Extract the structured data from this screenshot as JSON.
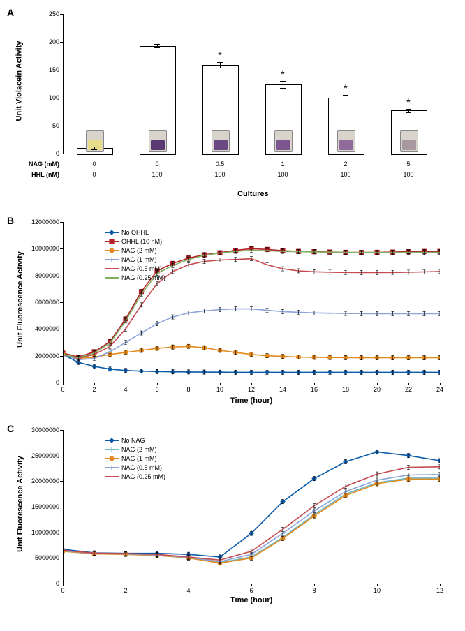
{
  "panelA": {
    "label": "A",
    "type": "bar",
    "ylabel": "Unit Violacein Activity",
    "xlabel": "Cultures",
    "ylim": [
      0,
      250
    ],
    "ytick_step": 50,
    "row1_label": "NAG (mM)",
    "row2_label": "HHL (nM)",
    "bars": [
      {
        "nag": "0",
        "hhl": "0",
        "value": 10,
        "err": 2,
        "star": false,
        "vial_color": "#e6dc8a"
      },
      {
        "nag": "0",
        "hhl": "100",
        "value": 193,
        "err": 3,
        "star": false,
        "vial_color": "#5a3a72"
      },
      {
        "nag": "0.5",
        "hhl": "100",
        "value": 159,
        "err": 5,
        "star": true,
        "vial_color": "#6a4882"
      },
      {
        "nag": "1",
        "hhl": "100",
        "value": 124,
        "err": 6,
        "star": true,
        "vial_color": "#7b568f"
      },
      {
        "nag": "2",
        "hhl": "100",
        "value": 100,
        "err": 5,
        "star": true,
        "vial_color": "#8f6a9a"
      },
      {
        "nag": "5",
        "hhl": "100",
        "value": 77,
        "err": 3,
        "star": true,
        "vial_color": "#a899a0"
      }
    ],
    "bar_color": "#ffffff",
    "bar_border": "#000000",
    "title_fontsize": 11
  },
  "panelB": {
    "label": "B",
    "type": "line",
    "ylabel": "Unit Fluorescence Activity",
    "xlabel": "Time (hour)",
    "xlim": [
      0,
      24
    ],
    "xtick_step": 2,
    "ylim": [
      0,
      12000000
    ],
    "ytick_step": 2000000,
    "series": [
      {
        "name": "No OHHL",
        "color": "#0b5aa8",
        "marker": "diamond",
        "fill": true,
        "y": [
          2100000,
          1500000,
          1200000,
          1000000,
          900000,
          850000,
          820000,
          800000,
          790000,
          780000,
          770000,
          760000,
          760000,
          760000,
          760000,
          760000,
          760000,
          760000,
          760000,
          760000,
          760000,
          760000,
          760000,
          760000,
          760000
        ]
      },
      {
        "name": "OHHL (10 nM)",
        "color": "#b22127",
        "marker": "square",
        "fill": true,
        "y": [
          2200000,
          1900000,
          2300000,
          3050000,
          4750000,
          6800000,
          8350000,
          8900000,
          9300000,
          9550000,
          9700000,
          9880000,
          10000000,
          9950000,
          9850000,
          9800000,
          9780000,
          9750000,
          9730000,
          9720000,
          9730000,
          9750000,
          9780000,
          9800000,
          9800000
        ]
      },
      {
        "name": "NAG (2 mM)",
        "color": "#e28a1e",
        "marker": "circle",
        "fill": true,
        "y": [
          2100000,
          1800000,
          1900000,
          2100000,
          2250000,
          2400000,
          2550000,
          2650000,
          2700000,
          2600000,
          2400000,
          2250000,
          2100000,
          2000000,
          1950000,
          1900000,
          1880000,
          1870000,
          1860000,
          1850000,
          1850000,
          1850000,
          1850000,
          1850000,
          1850000
        ]
      },
      {
        "name": "NAG (1 mM)",
        "color": "#8aa3d8",
        "marker": "plus",
        "fill": false,
        "y": [
          2100000,
          1700000,
          1800000,
          2300000,
          3000000,
          3700000,
          4400000,
          4900000,
          5200000,
          5350000,
          5450000,
          5500000,
          5500000,
          5400000,
          5300000,
          5250000,
          5200000,
          5180000,
          5160000,
          5150000,
          5140000,
          5140000,
          5140000,
          5140000,
          5140000
        ]
      },
      {
        "name": "NAG (0.5 mM)",
        "color": "#c44a4e",
        "marker": "none",
        "fill": false,
        "y": [
          2100000,
          1800000,
          2100000,
          2700000,
          4000000,
          5800000,
          7400000,
          8300000,
          8800000,
          9050000,
          9150000,
          9200000,
          9250000,
          8800000,
          8500000,
          8350000,
          8280000,
          8250000,
          8230000,
          8220000,
          8220000,
          8230000,
          8250000,
          8270000,
          8300000
        ]
      },
      {
        "name": "NAG (0.25 mM)",
        "color": "#7fb060",
        "marker": "none",
        "fill": false,
        "y": [
          2100000,
          1850000,
          2200000,
          2950000,
          4600000,
          6600000,
          8150000,
          8750000,
          9200000,
          9500000,
          9680000,
          9800000,
          9880000,
          9850000,
          9800000,
          9780000,
          9760000,
          9740000,
          9730000,
          9720000,
          9720000,
          9720000,
          9720000,
          9720000,
          9720000
        ]
      }
    ]
  },
  "panelC": {
    "label": "C",
    "type": "line",
    "ylabel": "Unit Fluorescence Activity",
    "xlabel": "Time (hour)",
    "xlim": [
      0,
      12
    ],
    "xtick_step": 2,
    "ylim": [
      0,
      30000000
    ],
    "ytick_step": 5000000,
    "series": [
      {
        "name": "No NAG",
        "color": "#0b5aa8",
        "marker": "diamond",
        "fill": true,
        "y": [
          6700000,
          6000000,
          5900000,
          5900000,
          5700000,
          5200000,
          9800000,
          16000000,
          20500000,
          23800000,
          25700000,
          25000000,
          24000000
        ]
      },
      {
        "name": "NAG (2 mM)",
        "color": "#6fb8c5",
        "marker": "plus",
        "fill": false,
        "y": [
          6300000,
          5800000,
          5700000,
          5500000,
          5000000,
          4100000,
          5200000,
          9000000,
          13500000,
          17500000,
          19700000,
          20600000,
          20600000
        ]
      },
      {
        "name": "NAG (1 mM)",
        "color": "#e28a1e",
        "marker": "circle",
        "fill": true,
        "y": [
          6300000,
          5800000,
          5700000,
          5500000,
          5000000,
          4000000,
          5000000,
          8800000,
          13200000,
          17200000,
          19500000,
          20400000,
          20400000
        ]
      },
      {
        "name": "NAG (0.5 mM)",
        "color": "#8aa3d8",
        "marker": "plus",
        "fill": false,
        "y": [
          6400000,
          5900000,
          5800000,
          5600000,
          5100000,
          4300000,
          5700000,
          9800000,
          14200000,
          18000000,
          20200000,
          21200000,
          21300000
        ]
      },
      {
        "name": "NAG (0.25 mM)",
        "color": "#c44a4e",
        "marker": "none",
        "fill": false,
        "y": [
          6500000,
          5950000,
          5850000,
          5700000,
          5200000,
          4600000,
          6300000,
          10600000,
          15200000,
          19000000,
          21400000,
          22700000,
          22800000
        ]
      }
    ]
  }
}
